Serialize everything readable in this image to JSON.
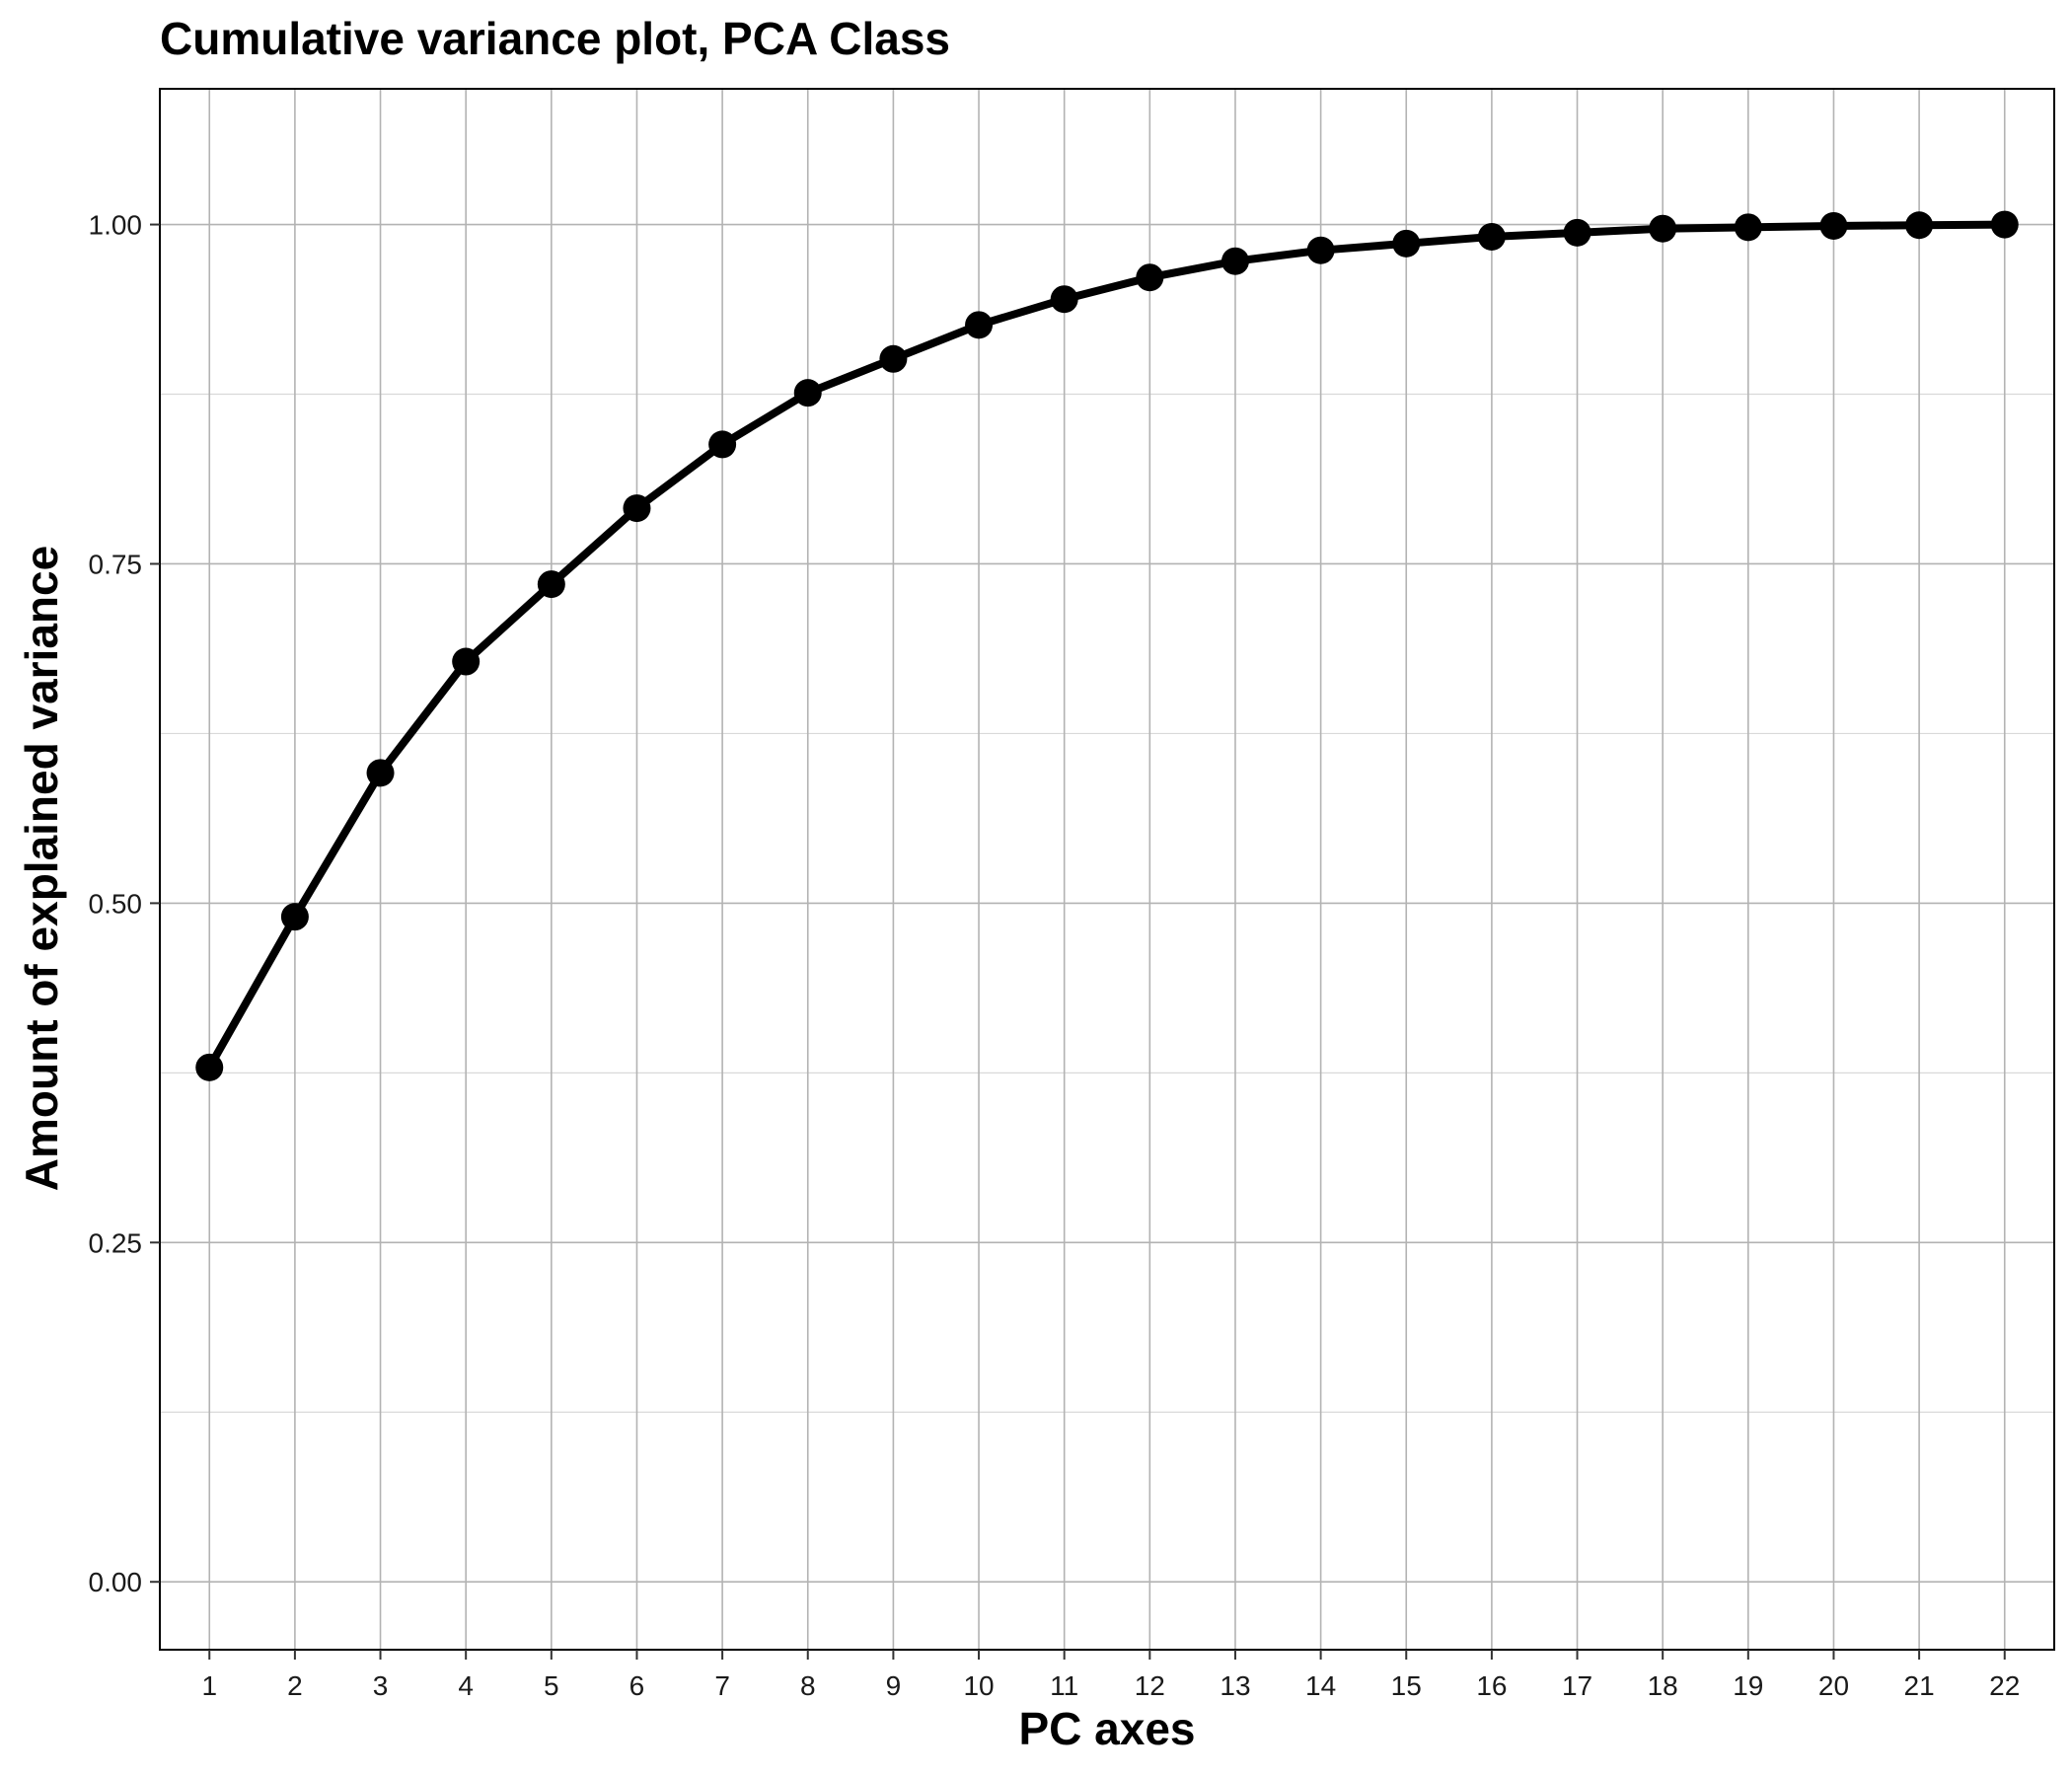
{
  "chart_data": {
    "type": "line",
    "title": "Cumulative variance plot, PCA Class",
    "xlabel": "PC axes",
    "ylabel": "Amount of explained variance",
    "x": [
      1,
      2,
      3,
      4,
      5,
      6,
      7,
      8,
      9,
      10,
      11,
      12,
      13,
      14,
      15,
      16,
      17,
      18,
      19,
      20,
      21,
      22
    ],
    "x_tick_labels": [
      "1",
      "2",
      "3",
      "4",
      "5",
      "6",
      "7",
      "8",
      "9",
      "10",
      "11",
      "12",
      "13",
      "14",
      "15",
      "16",
      "17",
      "18",
      "19",
      "20",
      "21",
      "22"
    ],
    "series": [
      {
        "values": [
          0.379,
          0.49,
          0.596,
          0.678,
          0.735,
          0.791,
          0.838,
          0.876,
          0.901,
          0.926,
          0.945,
          0.961,
          0.973,
          0.981,
          0.986,
          0.991,
          0.994,
          0.997,
          0.998,
          0.999,
          0.9995,
          1.0
        ],
        "color": "#000000"
      }
    ],
    "y_ticks": [
      0.0,
      0.25,
      0.5,
      0.75,
      1.0
    ],
    "y_tick_labels": [
      "0.00",
      "0.25",
      "0.50",
      "0.75",
      "1.00"
    ],
    "xlim": [
      0.42,
      22.58
    ],
    "ylim": [
      -0.05,
      1.1
    ],
    "grid": true
  }
}
